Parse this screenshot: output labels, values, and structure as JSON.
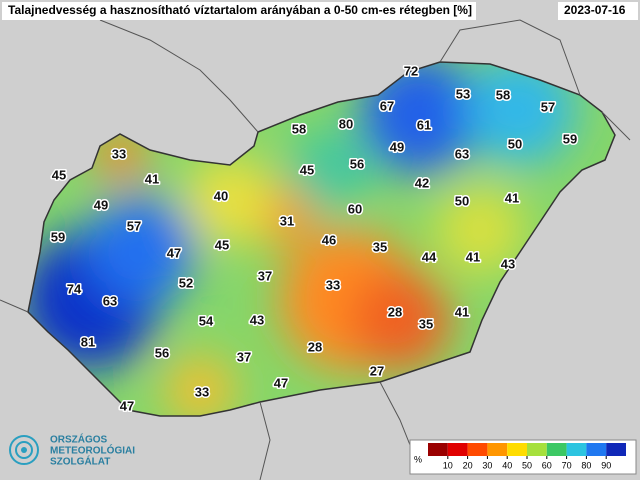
{
  "header": {
    "title": "Talajnedvesség a hasznosítható víztartalom arányában a 0-50 cm-es rétegben [%]",
    "date": "2023-07-16"
  },
  "stations": [
    72,
    53,
    58,
    57,
    67,
    61,
    80,
    58,
    59,
    50,
    63,
    49,
    56,
    33,
    45,
    41,
    45,
    42,
    40,
    49,
    60,
    31,
    50,
    41,
    57,
    59,
    47,
    45,
    46,
    35,
    44,
    41,
    43,
    52,
    37,
    33,
    74,
    63,
    28,
    35,
    41,
    54,
    43,
    81,
    28,
    56,
    37,
    27,
    47,
    33,
    47
  ],
  "legend": {
    "unit": "%",
    "ticks": [
      10,
      20,
      30,
      40,
      50,
      60,
      70,
      80,
      90
    ],
    "colors": [
      "#9a0000",
      "#e00000",
      "#ff4a00",
      "#ff9600",
      "#ffdc00",
      "#a6e03c",
      "#3cc864",
      "#2cc4e0",
      "#2078f0",
      "#1028b8"
    ]
  },
  "logo": {
    "lines": [
      "ORSZÁGOS",
      "METEOROLÓGIAI",
      "SZOLGÁLAT"
    ]
  }
}
